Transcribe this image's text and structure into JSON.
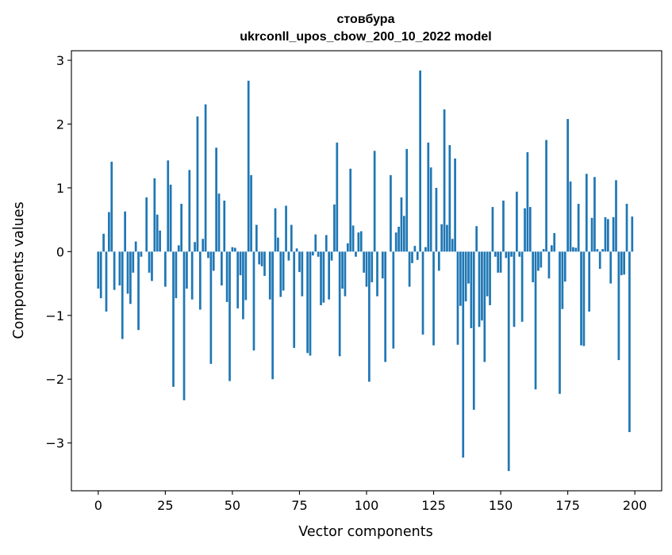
{
  "chart_data": {
    "type": "bar",
    "title_line1": "стовбура",
    "title_line2": "ukrconll_upos_cbow_200_10_2022 model",
    "xlabel": "Vector components",
    "ylabel": "Components values",
    "x_tick_labels": [
      "0",
      "25",
      "50",
      "75",
      "100",
      "125",
      "150",
      "175",
      "200"
    ],
    "y_tick_labels": [
      "−3",
      "−2",
      "−1",
      "0",
      "1",
      "2",
      "3"
    ],
    "xlim": [
      -10,
      210
    ],
    "ylim": [
      -3.75,
      3.15
    ],
    "bar_color": "#1f77b4",
    "values": [
      -0.58,
      -0.73,
      0.28,
      -0.94,
      0.62,
      1.41,
      -0.6,
      0.0,
      -0.53,
      -1.37,
      0.63,
      -0.66,
      -0.82,
      -0.33,
      0.16,
      -1.23,
      -0.08,
      0.0,
      0.85,
      -0.33,
      -0.46,
      1.15,
      0.58,
      0.33,
      0.0,
      -0.55,
      1.43,
      1.05,
      -2.12,
      -0.73,
      0.1,
      0.75,
      -2.33,
      -0.58,
      1.28,
      -0.75,
      0.15,
      2.12,
      -0.91,
      0.2,
      2.31,
      -0.1,
      -1.76,
      -0.3,
      1.63,
      0.91,
      -0.53,
      0.8,
      -0.79,
      -2.03,
      0.07,
      0.06,
      -0.89,
      -0.37,
      -1.06,
      -0.76,
      2.68,
      1.2,
      -1.55,
      0.42,
      -0.2,
      -0.23,
      -0.38,
      0.0,
      -0.75,
      -2.0,
      0.68,
      0.22,
      -0.71,
      -0.61,
      0.72,
      -0.14,
      0.42,
      -1.51,
      0.05,
      -0.32,
      -0.7,
      0.0,
      -1.59,
      -1.63,
      -0.06,
      0.27,
      -0.08,
      -0.84,
      -0.8,
      0.26,
      -0.75,
      -0.14,
      0.74,
      1.71,
      -1.64,
      -0.58,
      -0.7,
      0.13,
      1.3,
      0.41,
      -0.08,
      0.3,
      0.32,
      -0.33,
      -0.55,
      -2.04,
      -0.48,
      1.58,
      -0.7,
      0.0,
      -0.42,
      -1.73,
      0.0,
      1.2,
      -1.52,
      0.3,
      0.39,
      0.85,
      0.56,
      1.61,
      -0.55,
      -0.18,
      0.09,
      -0.13,
      2.84,
      -1.3,
      0.07,
      1.71,
      1.32,
      -1.47,
      1.0,
      -0.3,
      0.43,
      2.23,
      0.42,
      1.67,
      0.2,
      1.46,
      -1.46,
      -0.85,
      -3.23,
      -0.78,
      -0.5,
      -1.2,
      -2.48,
      0.4,
      -1.18,
      -1.08,
      -1.73,
      -0.7,
      -0.84,
      0.7,
      -0.08,
      -0.33,
      -0.33,
      0.8,
      -0.1,
      -3.44,
      -0.08,
      -1.18,
      0.94,
      -0.08,
      -1.1,
      0.68,
      1.56,
      0.7,
      -0.48,
      -2.16,
      -0.3,
      -0.25,
      0.04,
      1.75,
      -0.42,
      0.1,
      0.29,
      0.0,
      -2.23,
      -0.9,
      -0.47,
      2.08,
      1.1,
      0.07,
      0.06,
      0.75,
      -1.47,
      -1.48,
      1.22,
      -0.94,
      0.53,
      1.17,
      0.04,
      -0.27,
      0.04,
      0.54,
      0.51,
      -0.5,
      0.54,
      1.12,
      -1.7,
      -0.37,
      -0.36,
      0.75,
      -2.83,
      0.55
    ]
  }
}
